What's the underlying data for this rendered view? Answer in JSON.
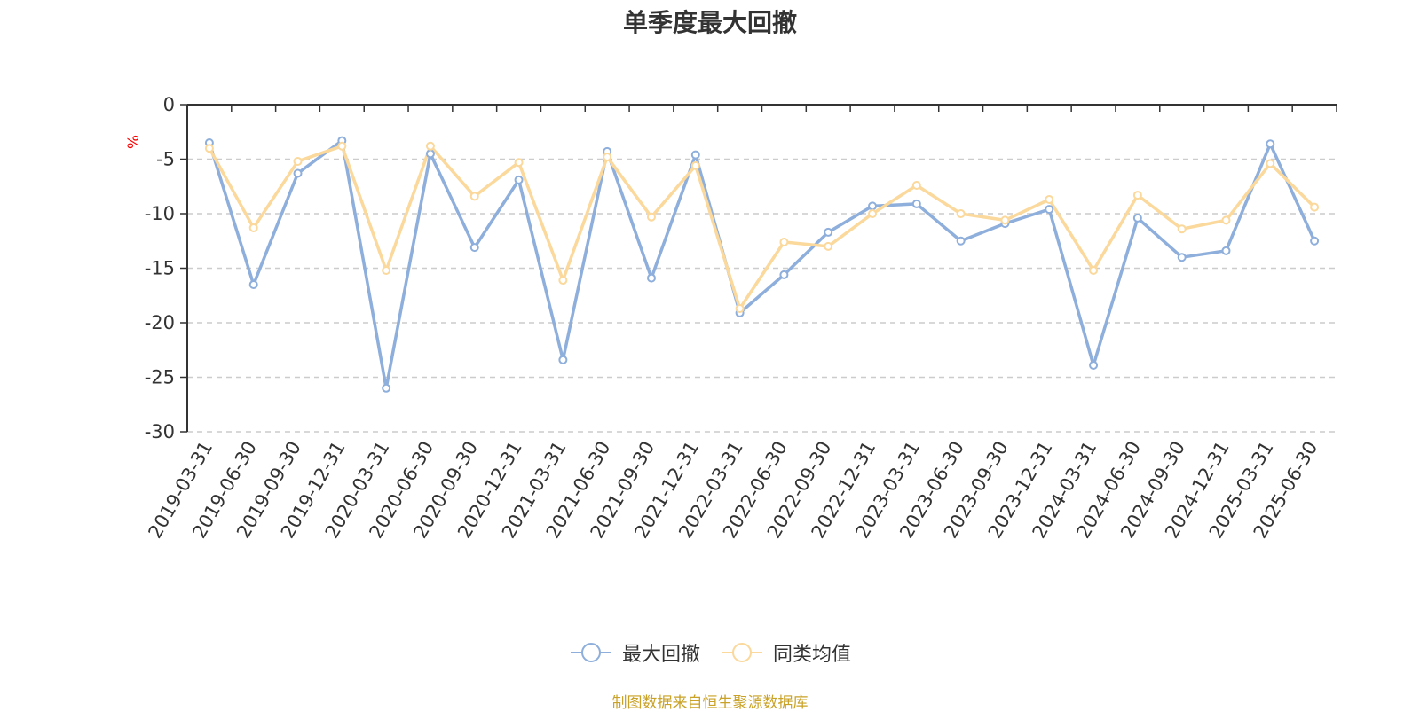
{
  "chart_data": {
    "type": "line",
    "title": "单季度最大回撤",
    "ylabel": "%",
    "ylim": [
      -30,
      0
    ],
    "yticks": [
      0,
      -5,
      -10,
      -15,
      -20,
      -25,
      -30
    ],
    "grid": true,
    "legend_position": "bottom",
    "categories": [
      "2019-03-31",
      "2019-06-30",
      "2019-09-30",
      "2019-12-31",
      "2020-03-31",
      "2020-06-30",
      "2020-09-30",
      "2020-12-31",
      "2021-03-31",
      "2021-06-30",
      "2021-09-30",
      "2021-12-31",
      "2022-03-31",
      "2022-06-30",
      "2022-09-30",
      "2022-12-31",
      "2023-03-31",
      "2023-06-30",
      "2023-09-30",
      "2023-12-31",
      "2024-03-31",
      "2024-06-30",
      "2024-09-30",
      "2024-12-31",
      "2025-03-31",
      "2025-06-30"
    ],
    "series": [
      {
        "name": "最大回撤",
        "color": "#8eaedb",
        "values": [
          -3.5,
          -16.5,
          -6.3,
          -3.3,
          -26.0,
          -4.5,
          -13.1,
          -6.9,
          -23.4,
          -4.3,
          -15.9,
          -4.6,
          -19.1,
          -15.6,
          -11.7,
          -9.3,
          -9.1,
          -12.5,
          -10.9,
          -9.6,
          -23.9,
          -10.4,
          -14.0,
          -13.4,
          -3.6,
          -12.5
        ]
      },
      {
        "name": "同类均值",
        "color": "#fbd89b",
        "values": [
          -4.0,
          -11.3,
          -5.2,
          -3.8,
          -15.2,
          -3.8,
          -8.4,
          -5.3,
          -16.1,
          -4.8,
          -10.3,
          -5.6,
          -18.7,
          -12.6,
          -13.0,
          -10.0,
          -7.4,
          -10.0,
          -10.6,
          -8.7,
          -15.2,
          -8.3,
          -11.4,
          -10.6,
          -5.4,
          -9.4
        ]
      }
    ]
  },
  "source_note": "制图数据来自恒生聚源数据库"
}
